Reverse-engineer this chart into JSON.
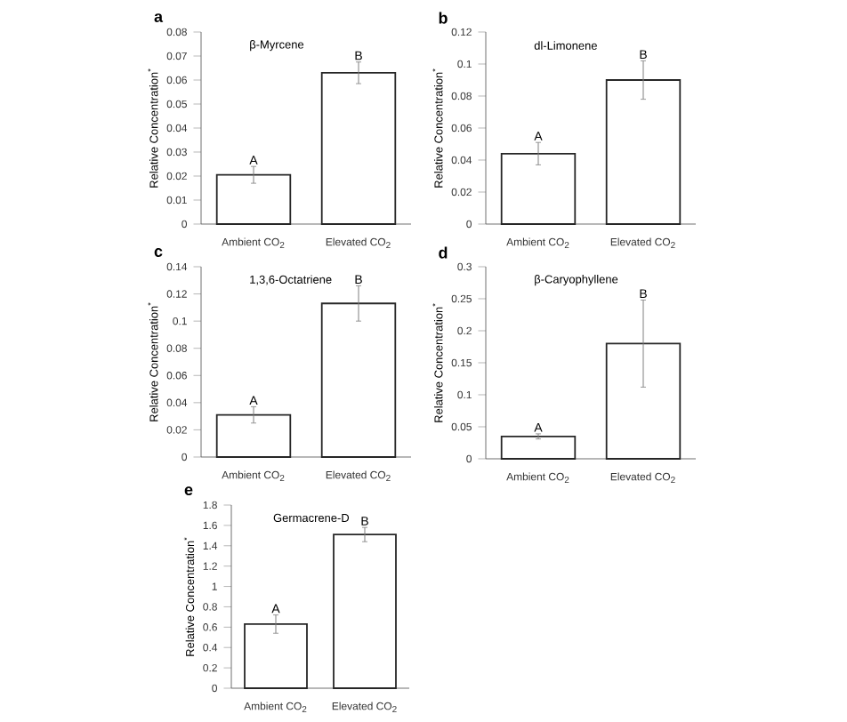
{
  "chart_data": [
    {
      "type": "bar",
      "title": "a",
      "subtitle": "β-Myrcene",
      "ylabel": "Relative Concentration$^{*}$",
      "categories": [
        "Ambient CO$_{2}$",
        "Elevated CO$_{2}$"
      ],
      "values": [
        0.0205,
        0.063
      ],
      "errors": [
        0.0035,
        0.0045
      ],
      "color": "#ffffff",
      "ylim": [
        0,
        0.08
      ],
      "yticks": [
        0,
        0.01,
        0.02,
        0.03,
        0.04,
        0.05,
        0.06,
        0.07,
        0.08
      ],
      "annotations": [
        {
          "text": "A",
          "x": "Ambient CO$_{2}$",
          "y": 0.024
        },
        {
          "text": "B",
          "x": "Elevated CO$_{2}$",
          "y": 0.0675
        }
      ]
    },
    {
      "type": "bar",
      "title": "b",
      "subtitle": "dl-Limonene",
      "ylabel": "Relative Concentration$^{*}$",
      "categories": [
        "Ambient CO$_{2}$",
        "Elevated CO$_{2}$"
      ],
      "values": [
        0.044,
        0.09
      ],
      "errors": [
        0.007,
        0.012
      ],
      "color": "#ffffff",
      "ylim": [
        0,
        0.12
      ],
      "yticks": [
        0,
        0.02,
        0.04,
        0.06,
        0.08,
        0.1,
        0.12
      ],
      "annotations": [
        {
          "text": "A",
          "x": "Ambient CO$_{2}$",
          "y": 0.051
        },
        {
          "text": "B",
          "x": "Elevated CO$_{2}$",
          "y": 0.102
        }
      ]
    },
    {
      "type": "bar",
      "title": "c",
      "subtitle": "1,3,6-Octatriene",
      "ylabel": "Relative Concentration$^{*}$",
      "categories": [
        "Ambient CO$_{2}$",
        "Elevated CO$_{2}$"
      ],
      "values": [
        0.031,
        0.113
      ],
      "errors": [
        0.006,
        0.013
      ],
      "color": "#ffffff",
      "ylim": [
        0,
        0.14
      ],
      "yticks": [
        0,
        0.02,
        0.04,
        0.06,
        0.08,
        0.1,
        0.12,
        0.14
      ],
      "annotations": [
        {
          "text": "A",
          "x": "Ambient CO$_{2}$",
          "y": 0.037
        },
        {
          "text": "B",
          "x": "Elevated CO$_{2}$",
          "y": 0.126
        }
      ]
    },
    {
      "type": "bar",
      "title": "d",
      "subtitle": "β-Caryophyllene",
      "ylabel": "Relative Concentration$^{*}$",
      "categories": [
        "Ambient CO$_{2}$",
        "Elevated CO$_{2}$"
      ],
      "values": [
        0.035,
        0.18
      ],
      "errors": [
        0.004,
        0.068
      ],
      "color": "#ffffff",
      "ylim": [
        0,
        0.3
      ],
      "yticks": [
        0,
        0.05,
        0.1,
        0.15,
        0.2,
        0.25,
        0.3
      ],
      "annotations": [
        {
          "text": "A",
          "x": "Ambient CO$_{2}$",
          "y": 0.039
        },
        {
          "text": "B",
          "x": "Elevated CO$_{2}$",
          "y": 0.248
        }
      ]
    },
    {
      "type": "bar",
      "title": "e",
      "subtitle": "Germacrene-D",
      "ylabel": "Relative Concentration$^{*}$",
      "categories": [
        "Ambient CO$_{2}$",
        "Elevated CO$_{2}$"
      ],
      "values": [
        0.63,
        1.51
      ],
      "errors": [
        0.09,
        0.07
      ],
      "color": "#ffffff",
      "ylim": [
        0,
        1.8
      ],
      "yticks": [
        0,
        0.2,
        0.4,
        0.6,
        0.8,
        1,
        1.2,
        1.4,
        1.6,
        1.8
      ],
      "annotations": [
        {
          "text": "A",
          "x": "Ambient CO$_{2}$",
          "y": 0.72
        },
        {
          "text": "B",
          "x": "Elevated CO$_{2}$",
          "y": 1.58
        }
      ]
    }
  ]
}
